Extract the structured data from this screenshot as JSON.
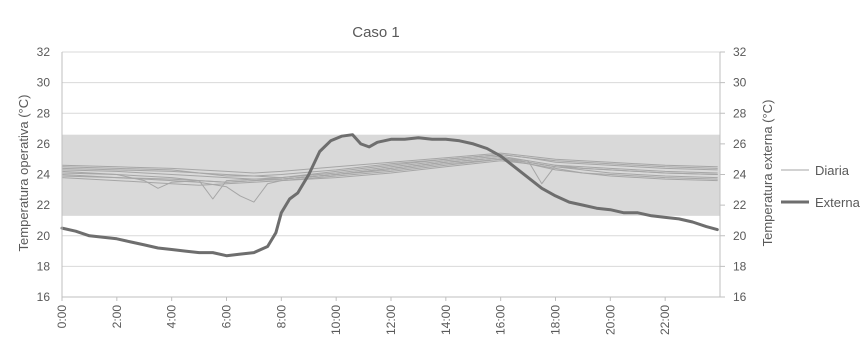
{
  "chart_data": {
    "type": "line",
    "title": "Caso 1",
    "ylabel_left": "Temperatura operativa (°C)",
    "ylabel_right": "Temperatura externa (°C)",
    "ylim": [
      16,
      32
    ],
    "yticks": [
      16,
      18,
      20,
      22,
      24,
      26,
      28,
      30,
      32
    ],
    "xlim": [
      0,
      24
    ],
    "xticks": [
      "0:00",
      "2:00",
      "4:00",
      "6:00",
      "8:00",
      "10:00",
      "12:00",
      "14:00",
      "16:00",
      "18:00",
      "20:00",
      "22:00"
    ],
    "comfort_band": [
      21.3,
      26.6
    ],
    "grid": true,
    "legend_position": "right",
    "legend": [
      "Diaria",
      "Externa"
    ],
    "colors": {
      "diaria": "#a6a6a6",
      "externa": "#6e6e6e",
      "band": "#d9d9d9",
      "grid": "#d9d9d9",
      "axis_text": "#595959"
    },
    "series": [
      {
        "name": "Externa",
        "style": "thick",
        "x": [
          0,
          0.5,
          1,
          1.5,
          2,
          2.5,
          3,
          3.5,
          4,
          4.5,
          5,
          5.5,
          6,
          6.5,
          7,
          7.5,
          7.8,
          8,
          8.3,
          8.6,
          9,
          9.4,
          9.8,
          10.2,
          10.6,
          10.9,
          11.2,
          11.5,
          12,
          12.5,
          13,
          13.5,
          14,
          14.5,
          15,
          15.5,
          16,
          16.5,
          17,
          17.5,
          18,
          18.5,
          19,
          19.5,
          20,
          20.5,
          21,
          21.5,
          22,
          22.5,
          23,
          23.5,
          23.9
        ],
        "y": [
          20.5,
          20.3,
          20.0,
          19.9,
          19.8,
          19.6,
          19.4,
          19.2,
          19.1,
          19.0,
          18.9,
          18.9,
          18.7,
          18.8,
          18.9,
          19.3,
          20.2,
          21.5,
          22.4,
          22.8,
          24.0,
          25.5,
          26.2,
          26.5,
          26.6,
          26.0,
          25.8,
          26.1,
          26.3,
          26.3,
          26.4,
          26.3,
          26.3,
          26.2,
          26.0,
          25.7,
          25.2,
          24.5,
          23.8,
          23.1,
          22.6,
          22.2,
          22.0,
          21.8,
          21.7,
          21.5,
          21.5,
          21.3,
          21.2,
          21.1,
          20.9,
          20.6,
          20.4
        ]
      },
      {
        "name": "",
        "style": "thin",
        "x": [
          0,
          2,
          4,
          5,
          5.5,
          6,
          7,
          8,
          10,
          12,
          14,
          16,
          17,
          18,
          19,
          20,
          22,
          23.9
        ],
        "y": [
          24.5,
          24.4,
          24.3,
          24.1,
          24.0,
          23.9,
          23.9,
          23.8,
          24.2,
          24.6,
          25.0,
          25.3,
          25.1,
          24.9,
          24.8,
          24.7,
          24.5,
          24.4
        ]
      },
      {
        "name": "",
        "style": "thin",
        "x": [
          0,
          2,
          4,
          5,
          5.5,
          6,
          7,
          8,
          10,
          12,
          14,
          16,
          17,
          18,
          19,
          20,
          22,
          23.9
        ],
        "y": [
          24.2,
          24.0,
          23.8,
          23.6,
          22.4,
          23.6,
          23.7,
          23.7,
          24.0,
          24.4,
          24.8,
          25.1,
          24.9,
          24.6,
          24.4,
          24.3,
          24.1,
          24.0
        ]
      },
      {
        "name": "",
        "style": "thin",
        "x": [
          0,
          2,
          4,
          5,
          6,
          6.5,
          7,
          7.5,
          8,
          10,
          12,
          14,
          16,
          17,
          18,
          19,
          20,
          22,
          23.9
        ],
        "y": [
          24.0,
          23.8,
          23.6,
          23.5,
          23.2,
          22.6,
          22.2,
          23.4,
          23.6,
          23.9,
          24.2,
          24.6,
          25.0,
          24.7,
          24.4,
          24.1,
          24.0,
          23.8,
          23.7
        ]
      },
      {
        "name": "",
        "style": "thin",
        "x": [
          0,
          2,
          4,
          5,
          6,
          7,
          8,
          10,
          12,
          14,
          16,
          17,
          17.5,
          18,
          19,
          20,
          22,
          23.9
        ],
        "y": [
          24.3,
          24.2,
          24.0,
          23.9,
          23.8,
          23.7,
          23.8,
          24.1,
          24.5,
          24.9,
          25.2,
          24.9,
          23.4,
          24.6,
          24.5,
          24.4,
          24.2,
          24.1
        ]
      },
      {
        "name": "",
        "style": "thin",
        "x": [
          0,
          2,
          4,
          5,
          6,
          7,
          8,
          10,
          12,
          14,
          16,
          17,
          18,
          19,
          20,
          22,
          23.9
        ],
        "y": [
          23.8,
          23.6,
          23.4,
          23.3,
          23.4,
          23.5,
          23.6,
          23.8,
          24.1,
          24.5,
          24.9,
          24.7,
          24.3,
          24.1,
          23.9,
          23.7,
          23.6
        ]
      },
      {
        "name": "",
        "style": "thin",
        "x": [
          0,
          2,
          4,
          5,
          6,
          7,
          8,
          10,
          12,
          14,
          16,
          17,
          18,
          19,
          20,
          22,
          23.9
        ],
        "y": [
          24.6,
          24.5,
          24.4,
          24.3,
          24.2,
          24.1,
          24.2,
          24.5,
          24.8,
          25.1,
          25.4,
          25.2,
          25.0,
          24.9,
          24.8,
          24.6,
          24.5
        ]
      },
      {
        "name": "",
        "style": "thin",
        "x": [
          0,
          2,
          4,
          5,
          6,
          7,
          8,
          10,
          12,
          14,
          16,
          17,
          18,
          19,
          20,
          22,
          23.9
        ],
        "y": [
          23.9,
          23.8,
          23.7,
          23.6,
          23.5,
          23.6,
          23.7,
          24.0,
          24.3,
          24.7,
          25.0,
          24.8,
          24.5,
          24.3,
          24.1,
          23.9,
          23.8
        ]
      },
      {
        "name": "",
        "style": "thin",
        "x": [
          0,
          2,
          3,
          3.5,
          4,
          5,
          6,
          7,
          8,
          10,
          12,
          14,
          16,
          17,
          18,
          19,
          20,
          22,
          23.9
        ],
        "y": [
          24.1,
          24.0,
          23.6,
          23.1,
          23.5,
          23.6,
          23.5,
          23.6,
          23.7,
          24.0,
          24.4,
          24.8,
          25.1,
          24.8,
          24.5,
          24.4,
          24.3,
          24.1,
          24.0
        ]
      },
      {
        "name": "",
        "style": "thin",
        "x": [
          0,
          2,
          4,
          5,
          6,
          7,
          8,
          10,
          12,
          14,
          16,
          17,
          18,
          19,
          20,
          22,
          23.9
        ],
        "y": [
          24.4,
          24.3,
          24.2,
          24.1,
          24.0,
          23.9,
          24.0,
          24.3,
          24.7,
          25.0,
          25.3,
          25.1,
          24.8,
          24.7,
          24.6,
          24.4,
          24.3
        ]
      }
    ]
  }
}
